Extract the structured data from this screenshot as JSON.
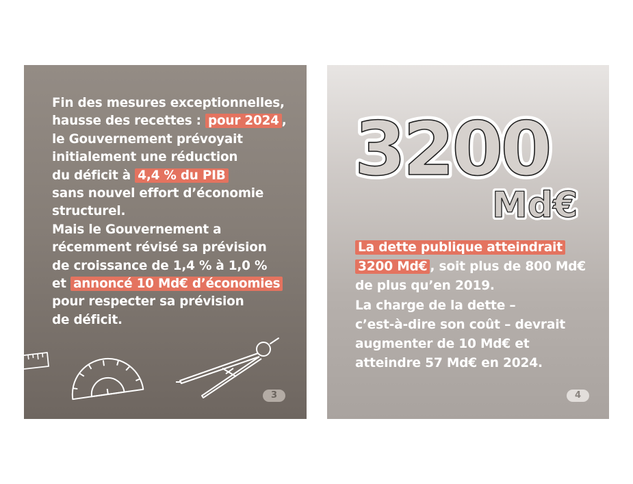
{
  "page3": {
    "lines": [
      {
        "before": "Fin des mesures exceptionnelles,",
        "highlight": "",
        "after": ""
      },
      {
        "before": "hausse des recettes : ",
        "highlight": "pour 2024",
        "after": ","
      },
      {
        "before": "le Gouvernement prévoyait",
        "highlight": "",
        "after": ""
      },
      {
        "before": "initialement une réduction",
        "highlight": "",
        "after": ""
      },
      {
        "before": "du déficit à ",
        "highlight": "4,4 % du PIB",
        "after": ""
      },
      {
        "before": "sans nouvel effort d’économie",
        "highlight": "",
        "after": ""
      },
      {
        "before": "structurel.",
        "highlight": "",
        "after": ""
      },
      {
        "before": "Mais le Gouvernement a",
        "highlight": "",
        "after": ""
      },
      {
        "before": "récemment révisé sa prévision",
        "highlight": "",
        "after": ""
      },
      {
        "before": "de croissance de 1,4 % à 1,0 %",
        "highlight": "",
        "after": ""
      },
      {
        "before": "et ",
        "highlight": "annoncé 10 Md€ d’économies",
        "after": ""
      },
      {
        "before": "pour respecter sa prévision",
        "highlight": "",
        "after": ""
      },
      {
        "before": "de déficit.",
        "highlight": "",
        "after": ""
      }
    ],
    "page_number": "3",
    "decorations": [
      "ruler-icon",
      "protractor-icon",
      "compass-icon"
    ]
  },
  "page4": {
    "big_number": "3200",
    "big_unit": "Md€",
    "lines": [
      {
        "before": "",
        "highlight": "La dette publique atteindrait",
        "after": ""
      },
      {
        "before": "",
        "highlight": "3200 Md€",
        "after": ", soit plus de 800 Md€"
      },
      {
        "before": "de plus qu’en 2019.",
        "highlight": "",
        "after": ""
      },
      {
        "before": "La charge de la dette –",
        "highlight": "",
        "after": ""
      },
      {
        "before": "c’est-à-dire son coût – devrait",
        "highlight": "",
        "after": ""
      },
      {
        "before": "augmenter de 10 Md€ et",
        "highlight": "",
        "after": ""
      },
      {
        "before": "atteindre 57 Md€ en 2024.",
        "highlight": "",
        "after": ""
      }
    ],
    "page_number": "4"
  },
  "colors": {
    "highlight": "#e4735f",
    "page3_bg": "#867e77",
    "page4_bg": "#cfcac7",
    "text": "#ffffff"
  }
}
